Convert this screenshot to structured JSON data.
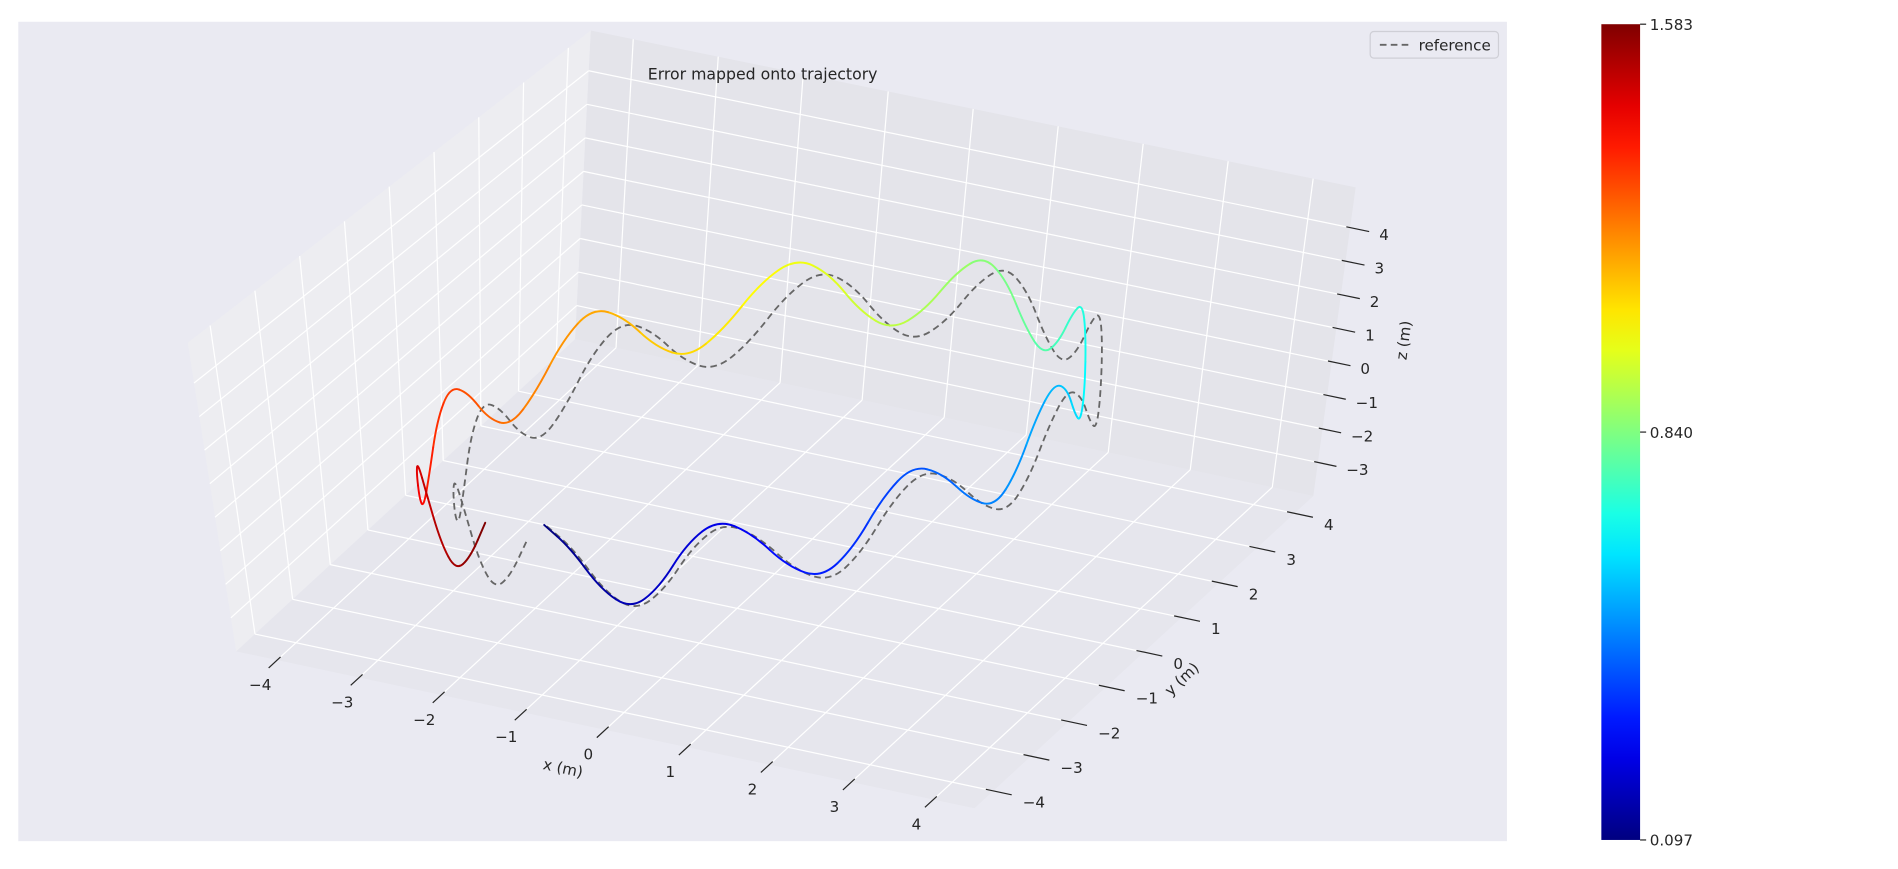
{
  "chart_data": {
    "type": "line3d",
    "title": "Error mapped onto trajectory",
    "xlabel": "x (m)",
    "ylabel": "y (m)",
    "zlabel": "z (m)",
    "xlim": [
      -4.5,
      4.5
    ],
    "ylim": [
      -4.5,
      4.5
    ],
    "zlim": [
      -4,
      5.2
    ],
    "xticks": [
      {
        "value": -4,
        "label": "−4"
      },
      {
        "value": -3,
        "label": "−3"
      },
      {
        "value": -2,
        "label": "−2"
      },
      {
        "value": -1,
        "label": "−1"
      },
      0,
      1,
      2,
      3,
      4
    ],
    "yticks": [
      {
        "value": -4,
        "label": "−4"
      },
      {
        "value": -3,
        "label": "−3"
      },
      {
        "value": -2,
        "label": "−2"
      },
      {
        "value": -1,
        "label": "−1"
      },
      0,
      1,
      2,
      3,
      4
    ],
    "zticks": [
      {
        "value": -3,
        "label": "−3"
      },
      {
        "value": -2,
        "label": "−2"
      },
      {
        "value": -1,
        "label": "−1"
      },
      0,
      1,
      2,
      3,
      4
    ],
    "grid": true,
    "legend": "upper right",
    "colormap": "jet",
    "series": [
      {
        "name": "reference",
        "color": "#666666",
        "dashed": true,
        "x": [
          -1.08,
          -0.73,
          -0.37,
          0,
          0.37,
          0.73,
          1.08,
          1.42,
          1.75,
          2.06,
          2.34,
          2.6,
          2.83,
          3.03,
          3.2,
          3.33,
          3.42,
          3.48,
          3.5,
          3.48,
          3.42,
          3.33,
          3.2,
          3.03,
          2.83,
          2.6,
          2.34,
          2.06,
          1.75,
          1.42,
          1.08,
          0.73,
          0.37,
          0,
          -0.37,
          -0.73,
          -1.08,
          -1.42,
          -1.75,
          -2.06,
          -2.34,
          -2.6,
          -2.83,
          -3.03,
          -3.2,
          -3.33,
          -3.42,
          -3.48,
          -3.5,
          -3.48,
          -3.42,
          -3.33,
          -3.2,
          -3.03,
          -2.83,
          -2.6,
          -2.34,
          -2.06,
          -1.75,
          -1.42
        ],
        "y": [
          -3.33,
          -3.42,
          -3.48,
          -3.5,
          -3.48,
          -3.42,
          -3.33,
          -3.2,
          -3.03,
          -2.83,
          -2.6,
          -2.34,
          -2.06,
          -1.75,
          -1.42,
          -1.08,
          -0.73,
          -0.37,
          0,
          0.37,
          0.73,
          1.08,
          1.42,
          1.75,
          2.06,
          2.34,
          2.6,
          2.83,
          3.03,
          3.2,
          3.33,
          3.42,
          3.48,
          3.5,
          3.48,
          3.42,
          3.33,
          3.2,
          3.03,
          2.83,
          2.6,
          2.34,
          2.06,
          1.75,
          1.42,
          1.08,
          0.73,
          0.37,
          0,
          -0.37,
          -0.73,
          -1.08,
          -1.42,
          -1.75,
          -2.06,
          -2.34,
          -2.6,
          -2.83,
          -3.03,
          -3.2
        ],
        "z": [
          0.3,
          -0.11,
          -1.11,
          -1.5,
          -0.69,
          0.73,
          1.54,
          1.15,
          0.15,
          -0.25,
          0.54,
          1.92,
          2.68,
          2.23,
          1.17,
          0.68,
          1.37,
          2.65,
          3.3,
          2.73,
          1.54,
          0.93,
          1.49,
          2.63,
          3.15,
          2.45,
          1.14,
          0.4,
          0.85,
          1.88,
          2.3,
          1.51,
          0.11,
          -0.7,
          -0.31,
          0.68,
          1.06,
          0.25,
          -1.15,
          -1.95,
          -1.54,
          -0.52,
          -0.08,
          -0.83,
          -2.17,
          -2.88,
          -2.37,
          -1.25,
          -0.7,
          -1.33,
          -2.54,
          -3.13,
          -2.49,
          -1.23,
          -0.55,
          -1.05,
          -2.14,
          -2.6,
          -1.85,
          -0.48
        ]
      },
      {
        "x": [
          -1.11,
          -0.77,
          -0.41,
          -0.05,
          0.31,
          0.66,
          1.01,
          1.34,
          1.66,
          1.96,
          2.24,
          2.49,
          2.71,
          2.9,
          3.07,
          3.19,
          3.27,
          3.32,
          3.34,
          3.31,
          3.24,
          3.14,
          3.01,
          2.83,
          2.62,
          2.38,
          2.11,
          1.83,
          1.51,
          1.17,
          0.82,
          0.47,
          0.1,
          -0.28,
          -0.66,
          -1.02,
          -1.38,
          -1.73,
          -2.07,
          -2.38,
          -2.67,
          -2.94,
          -3.18,
          -3.38,
          -3.56,
          -3.7,
          -3.8,
          -3.86,
          -3.89,
          -3.88,
          -3.83,
          -3.75,
          -3.62,
          -3.46,
          -3.27,
          -3.05,
          -2.79,
          -2.52,
          -2.22,
          -1.9
        ],
        "y": [
          -3.33,
          -3.42,
          -3.48,
          -3.5,
          -3.48,
          -3.42,
          -3.33,
          -3.2,
          -3.03,
          -2.83,
          -2.6,
          -2.34,
          -2.06,
          -1.75,
          -1.42,
          -1.08,
          -0.73,
          -0.37,
          0,
          0.37,
          0.73,
          1.08,
          1.42,
          1.75,
          2.06,
          2.34,
          2.6,
          2.83,
          3.03,
          3.2,
          3.33,
          3.42,
          3.48,
          3.5,
          3.48,
          3.42,
          3.33,
          3.2,
          3.03,
          2.83,
          2.6,
          2.34,
          2.06,
          1.75,
          1.42,
          1.08,
          0.73,
          0.37,
          0,
          -0.37,
          -0.73,
          -1.08,
          -1.42,
          -1.75,
          -2.06,
          -2.34,
          -2.6,
          -2.83,
          -3.03,
          -3.2
        ],
        "z": [
          0.32,
          -0.09,
          -1.08,
          -1.47,
          -0.65,
          0.78,
          1.59,
          1.21,
          0.21,
          -0.19,
          0.61,
          2.0,
          2.76,
          2.32,
          1.26,
          0.78,
          1.47,
          2.76,
          3.41,
          2.85,
          1.66,
          1.06,
          1.62,
          2.77,
          3.29,
          2.6,
          1.29,
          0.56,
          1.01,
          2.05,
          2.47,
          1.69,
          0.29,
          -0.51,
          -0.12,
          0.88,
          1.26,
          0.46,
          -0.94,
          -1.73,
          -1.32,
          -0.29,
          0.15,
          -0.59,
          -1.93,
          -2.63,
          -2.12,
          -0.99,
          -0.44,
          -1.06,
          -2.27,
          -2.85,
          -2.21,
          -0.94,
          -0.26,
          -0.75,
          -1.84,
          -2.29,
          -1.54,
          -0.16
        ],
        "values": [
          0.097,
          0.122,
          0.147,
          0.173,
          0.198,
          0.223,
          0.248,
          0.273,
          0.299,
          0.324,
          0.349,
          0.374,
          0.399,
          0.425,
          0.45,
          0.475,
          0.5,
          0.525,
          0.551,
          0.576,
          0.601,
          0.626,
          0.651,
          0.677,
          0.702,
          0.727,
          0.752,
          0.777,
          0.803,
          0.828,
          0.853,
          0.878,
          0.903,
          0.929,
          0.954,
          0.979,
          1.004,
          1.029,
          1.055,
          1.08,
          1.105,
          1.13,
          1.155,
          1.181,
          1.206,
          1.231,
          1.256,
          1.281,
          1.307,
          1.332,
          1.357,
          1.382,
          1.407,
          1.433,
          1.458,
          1.483,
          1.508,
          1.533,
          1.559,
          1.583
        ]
      }
    ],
    "colorbar": {
      "lim": [
        0.097,
        1.583
      ],
      "ticks": [
        0.097,
        {
          "value": 0.84,
          "label": "0.840"
        },
        1.583
      ]
    }
  }
}
